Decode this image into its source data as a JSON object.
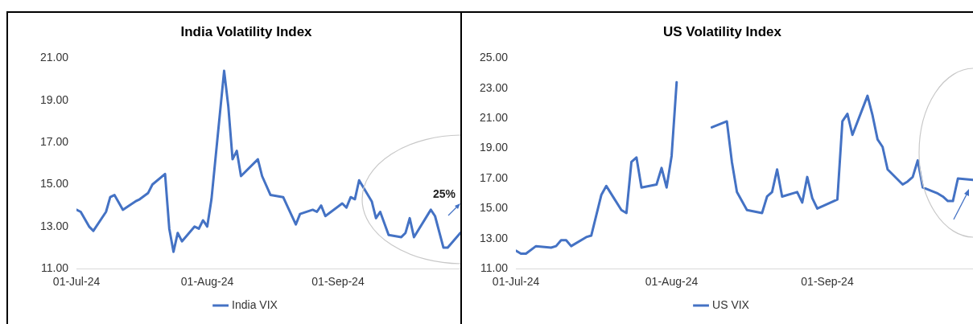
{
  "chart_data": [
    {
      "type": "line",
      "title": "India Volatility Index",
      "x": [
        "2024-07-01",
        "2024-07-02",
        "2024-07-04",
        "2024-07-05",
        "2024-07-08",
        "2024-07-09",
        "2024-07-10",
        "2024-07-12",
        "2024-07-15",
        "2024-07-16",
        "2024-07-18",
        "2024-07-19",
        "2024-07-22",
        "2024-07-23",
        "2024-07-24",
        "2024-07-25",
        "2024-07-26",
        "2024-07-29",
        "2024-07-30",
        "2024-07-31",
        "2024-08-01",
        "2024-08-02",
        "2024-08-05",
        "2024-08-06",
        "2024-08-07",
        "2024-08-08",
        "2024-08-09",
        "2024-08-13",
        "2024-08-14",
        "2024-08-16",
        "2024-08-19",
        "2024-08-22",
        "2024-08-23",
        "2024-08-26",
        "2024-08-27",
        "2024-08-28",
        "2024-08-29",
        "2024-09-02",
        "2024-09-03",
        "2024-09-04",
        "2024-09-05",
        "2024-09-06",
        "2024-09-09",
        "2024-09-10",
        "2024-09-11",
        "2024-09-13",
        "2024-09-16",
        "2024-09-17",
        "2024-09-18",
        "2024-09-19",
        "2024-09-23",
        "2024-09-24",
        "2024-09-26",
        "2024-09-27",
        "2024-09-30"
      ],
      "series": [
        {
          "name": "India VIX",
          "color": "#4472c4",
          "values": [
            13.8,
            13.7,
            13.0,
            12.8,
            13.7,
            14.4,
            14.5,
            13.8,
            14.2,
            14.3,
            14.6,
            15.0,
            15.5,
            12.9,
            11.8,
            12.7,
            12.3,
            13.0,
            12.9,
            13.3,
            13.0,
            14.3,
            20.4,
            18.7,
            16.2,
            16.6,
            15.4,
            16.2,
            15.4,
            14.5,
            14.4,
            13.1,
            13.6,
            13.8,
            13.7,
            14.0,
            13.5,
            14.1,
            13.9,
            14.4,
            14.3,
            15.2,
            14.2,
            13.4,
            13.7,
            12.6,
            12.5,
            12.7,
            13.4,
            12.5,
            13.8,
            13.5,
            12.0,
            12.0,
            12.7
          ]
        }
      ],
      "xlim": [
        "2024-07-01",
        "2024-09-30"
      ],
      "xticks": [
        {
          "value": "2024-07-01",
          "label": "01-Jul-24"
        },
        {
          "value": "2024-08-01",
          "label": "01-Aug-24"
        },
        {
          "value": "2024-09-01",
          "label": "01-Sep-24"
        }
      ],
      "ylim": [
        11,
        21
      ],
      "yticks": [
        {
          "value": 11,
          "label": "11.00"
        },
        {
          "value": 13,
          "label": "13.00"
        },
        {
          "value": 15,
          "label": "15.00"
        },
        {
          "value": 17,
          "label": "17.00"
        },
        {
          "value": 19,
          "label": "19.00"
        },
        {
          "value": 21,
          "label": "21.00"
        }
      ],
      "grid": false,
      "legend": "bottom",
      "marker": "none",
      "line_style": "solid",
      "annotations": [
        "25%"
      ]
    },
    {
      "type": "line",
      "title": "US Volatility Index",
      "x": [
        "2024-07-01",
        "2024-07-02",
        "2024-07-03",
        "2024-07-05",
        "2024-07-08",
        "2024-07-09",
        "2024-07-10",
        "2024-07-11",
        "2024-07-12",
        "2024-07-15",
        "2024-07-16",
        "2024-07-18",
        "2024-07-19",
        "2024-07-22",
        "2024-07-23",
        "2024-07-24",
        "2024-07-25",
        "2024-07-26",
        "2024-07-29",
        "2024-07-30",
        "2024-07-31",
        "2024-08-01",
        "2024-08-02",
        "2024-08-05",
        "2024-08-06",
        "2024-08-07",
        "2024-08-08",
        "2024-08-09",
        "2024-08-12",
        "2024-08-13",
        "2024-08-14",
        "2024-08-16",
        "2024-08-19",
        "2024-08-20",
        "2024-08-21",
        "2024-08-22",
        "2024-08-23",
        "2024-08-26",
        "2024-08-27",
        "2024-08-28",
        "2024-08-29",
        "2024-08-30",
        "2024-09-03",
        "2024-09-04",
        "2024-09-05",
        "2024-09-06",
        "2024-09-09",
        "2024-09-10",
        "2024-09-11",
        "2024-09-12",
        "2024-09-13",
        "2024-09-16",
        "2024-09-17",
        "2024-09-18",
        "2024-09-19",
        "2024-09-20",
        "2024-09-23",
        "2024-09-24",
        "2024-09-25",
        "2024-09-26",
        "2024-09-27",
        "2024-09-30"
      ],
      "series": [
        {
          "name": "US VIX",
          "color": "#4472c4",
          "values": [
            12.2,
            12.0,
            12.0,
            12.5,
            12.4,
            12.5,
            12.9,
            12.9,
            12.5,
            13.1,
            13.2,
            15.9,
            16.5,
            14.9,
            14.7,
            18.1,
            18.4,
            16.4,
            16.6,
            17.7,
            16.4,
            18.5,
            23.4,
            null,
            null,
            null,
            null,
            20.4,
            20.8,
            18.1,
            16.1,
            14.9,
            14.7,
            15.8,
            16.1,
            17.6,
            15.8,
            16.1,
            15.4,
            17.1,
            15.7,
            15.0,
            15.6,
            20.8,
            21.3,
            19.9,
            22.5,
            21.2,
            19.6,
            19.1,
            17.6,
            16.6,
            16.8,
            17.1,
            18.2,
            16.4,
            16.0,
            15.8,
            15.5,
            15.5,
            17.0,
            16.9
          ]
        }
      ],
      "xlim": [
        "2024-07-01",
        "2024-09-30"
      ],
      "xticks": [
        {
          "value": "2024-07-01",
          "label": "01-Jul-24"
        },
        {
          "value": "2024-08-01",
          "label": "01-Aug-24"
        },
        {
          "value": "2024-09-01",
          "label": "01-Sep-24"
        }
      ],
      "ylim": [
        11,
        25
      ],
      "yticks": [
        {
          "value": 11,
          "label": "11.00"
        },
        {
          "value": 13,
          "label": "13.00"
        },
        {
          "value": 15,
          "label": "15.00"
        },
        {
          "value": 17,
          "label": "17.00"
        },
        {
          "value": 19,
          "label": "19.00"
        },
        {
          "value": 21,
          "label": "21.00"
        },
        {
          "value": 23,
          "label": "23.00"
        },
        {
          "value": 25,
          "label": "25.00"
        }
      ],
      "grid": false,
      "legend": "bottom",
      "marker": "none",
      "line_style": "solid"
    }
  ]
}
